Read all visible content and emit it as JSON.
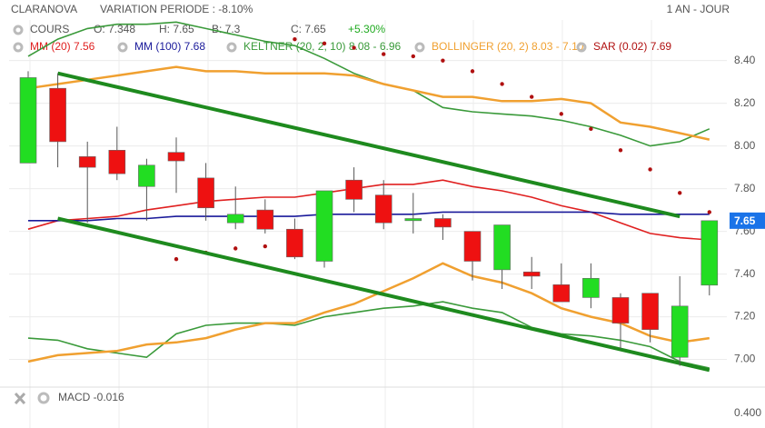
{
  "chart_data": {
    "type": "candlestick",
    "title": "CLARANOVA",
    "subtitle": "VARIATION PERIODE : -8.10%",
    "period": "1 AN - JOUR",
    "ohlc_legend": [
      "COURS",
      "O: 7.348",
      "H: 7.65",
      "B: 7.3",
      "C: 7.65",
      "+5.30%"
    ],
    "ylim": [
      6.93,
      8.59
    ],
    "yticks": [
      {
        "value": 7,
        "label": "7.00"
      },
      {
        "value": 7.2,
        "label": "7.20"
      },
      {
        "value": 7.4,
        "label": "7.40"
      },
      {
        "value": 7.6,
        "label": "7.60"
      },
      {
        "value": 7.8,
        "label": "7.80"
      },
      {
        "value": 8,
        "label": "8.00"
      },
      {
        "value": 8.2,
        "label": "8.20"
      },
      {
        "value": 8.4,
        "label": "8.40"
      }
    ],
    "grid": true,
    "up_color": "#22dd22",
    "down_color": "#ee1111",
    "candles": {
      "open": [
        7.92,
        8.27,
        7.95,
        7.98,
        7.81,
        7.97,
        7.85,
        7.64,
        7.7,
        7.61,
        7.46,
        7.84,
        7.77,
        7.65,
        7.66,
        7.6,
        7.42,
        7.41,
        7.35,
        7.29,
        7.29,
        7.31,
        7.01,
        7.348
      ],
      "high": [
        8.35,
        8.34,
        8.02,
        8.09,
        7.94,
        8.04,
        7.92,
        7.81,
        7.75,
        7.66,
        7.79,
        7.9,
        7.84,
        7.78,
        7.68,
        7.6,
        7.63,
        7.48,
        7.45,
        7.45,
        7.31,
        7.31,
        7.39,
        7.65
      ],
      "low": [
        7.92,
        7.9,
        7.64,
        7.84,
        7.65,
        7.78,
        7.65,
        7.61,
        7.59,
        7.47,
        7.43,
        7.69,
        7.61,
        7.59,
        7.56,
        7.37,
        7.33,
        7.33,
        7.27,
        7.24,
        7.05,
        7.08,
        6.97,
        7.3
      ],
      "close": [
        8.32,
        8.02,
        7.9,
        7.87,
        7.91,
        7.93,
        7.71,
        7.68,
        7.61,
        7.48,
        7.79,
        7.75,
        7.64,
        7.66,
        7.62,
        7.46,
        7.63,
        7.39,
        7.27,
        7.38,
        7.17,
        7.14,
        7.25,
        7.65
      ]
    },
    "indicators": [
      {
        "name": "MM (20) 7.56",
        "color": "#e02020",
        "style": "line",
        "lines": [
          [
            7.61,
            7.65,
            7.66,
            7.67,
            7.7,
            7.72,
            7.74,
            7.75,
            7.76,
            7.76,
            7.78,
            7.8,
            7.82,
            7.82,
            7.84,
            7.81,
            7.79,
            7.76,
            7.72,
            7.69,
            7.64,
            7.59,
            7.57,
            7.56
          ]
        ]
      },
      {
        "name": "MM (100) 7.68",
        "color": "#1a1a9a",
        "style": "line",
        "lines": [
          [
            7.65,
            7.65,
            7.65,
            7.66,
            7.66,
            7.67,
            7.67,
            7.67,
            7.67,
            7.67,
            7.68,
            7.68,
            7.68,
            7.68,
            7.69,
            7.69,
            7.69,
            7.69,
            7.69,
            7.69,
            7.68,
            7.68,
            7.68,
            7.68
          ]
        ]
      },
      {
        "name": "KELTNER (20, 2, 10) 8.08 - 6.96",
        "color": "#3a9a3a",
        "style": "line",
        "lines": [
          [
            8.42,
            8.5,
            8.55,
            8.57,
            8.57,
            8.58,
            8.55,
            8.52,
            8.49,
            8.47,
            8.41,
            8.34,
            8.29,
            8.26,
            8.18,
            8.16,
            8.15,
            8.14,
            8.12,
            8.09,
            8.05,
            8.0,
            8.02,
            8.08
          ],
          [
            7.1,
            7.09,
            7.05,
            7.03,
            7.01,
            7.12,
            7.16,
            7.17,
            7.17,
            7.16,
            7.2,
            7.22,
            7.24,
            7.25,
            7.27,
            7.24,
            7.22,
            7.15,
            7.12,
            7.11,
            7.09,
            7.06,
            6.99,
            6.96
          ]
        ]
      },
      {
        "name": "BOLLINGER (20, 2) 8.03 - 7.10",
        "color": "#f0a030",
        "style": "line",
        "lines": [
          [
            8.27,
            8.29,
            8.31,
            8.33,
            8.35,
            8.37,
            8.35,
            8.35,
            8.34,
            8.34,
            8.34,
            8.33,
            8.29,
            8.26,
            8.23,
            8.23,
            8.21,
            8.21,
            8.22,
            8.2,
            8.11,
            8.09,
            8.06,
            8.03
          ],
          [
            6.99,
            7.02,
            7.03,
            7.04,
            7.07,
            7.08,
            7.1,
            7.14,
            7.17,
            7.17,
            7.22,
            7.26,
            7.32,
            7.38,
            7.45,
            7.39,
            7.36,
            7.31,
            7.24,
            7.2,
            7.17,
            7.11,
            7.08,
            7.1
          ]
        ]
      },
      {
        "name": "SAR (0.02) 7.69",
        "color": "#b01010",
        "style": "dots",
        "lines": [
          [
            null,
            null,
            null,
            null,
            null,
            7.47,
            7.5,
            7.52,
            7.53,
            8.5,
            8.48,
            8.46,
            8.43,
            8.42,
            8.4,
            8.35,
            8.29,
            8.23,
            8.15,
            8.08,
            7.98,
            7.89,
            7.78,
            7.69
          ]
        ]
      }
    ],
    "trendlines": [
      {
        "color": "#1e8a1e",
        "points": [
          [
            1,
            8.34
          ],
          [
            22,
            7.67
          ]
        ]
      },
      {
        "color": "#1e8a1e",
        "points": [
          [
            1,
            7.66
          ],
          [
            23,
            6.95
          ]
        ]
      }
    ],
    "last_price": 7.65,
    "macd": {
      "title": "MACD -0.016",
      "yticks": [
        {
          "value": 0.4,
          "label": "0.400"
        }
      ]
    }
  }
}
